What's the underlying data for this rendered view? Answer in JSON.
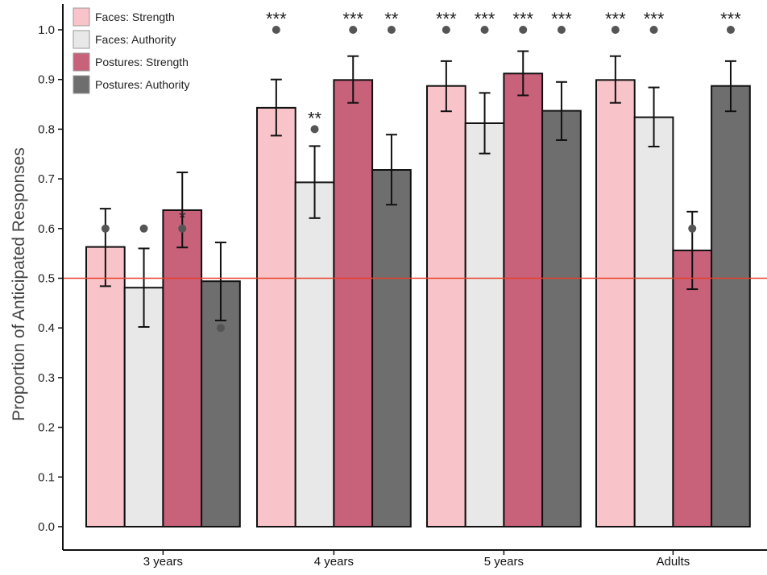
{
  "chart_data": {
    "type": "bar",
    "categories": [
      "3 years",
      "4 years",
      "5 years",
      "Adults"
    ],
    "ylabel": "Proportion of Anticipated Responses",
    "xlabel": "",
    "ylim": [
      0,
      1.0
    ],
    "yticks": [
      "0.0",
      "0.1",
      "0.2",
      "0.3",
      "0.4",
      "0.5",
      "0.6",
      "0.7",
      "0.8",
      "0.9",
      "1.0"
    ],
    "ytick_values": [
      0,
      0.1,
      0.2,
      0.3,
      0.4,
      0.5,
      0.6,
      0.7,
      0.8,
      0.9,
      1.0
    ],
    "reference_line": 0.5,
    "reference_line_color": "#e8402a",
    "legend_position": "top-left",
    "grid": false,
    "series": [
      {
        "name": "Faces: Strength",
        "color": "#f8c4c9",
        "values": [
          0.563,
          0.843,
          0.887,
          0.899
        ],
        "err_low": [
          0.484,
          0.787,
          0.836,
          0.853
        ],
        "err_high": [
          0.64,
          0.9,
          0.937,
          0.947
        ],
        "dots": [
          0.6,
          1.0,
          1.0,
          1.0
        ],
        "sig": [
          "",
          "***",
          "***",
          "***"
        ]
      },
      {
        "name": "Faces: Authority",
        "color": "#e8e8e8",
        "values": [
          0.481,
          0.693,
          0.812,
          0.824
        ],
        "err_low": [
          0.402,
          0.621,
          0.751,
          0.765
        ],
        "err_high": [
          0.56,
          0.766,
          0.873,
          0.884
        ],
        "dots": [
          0.6,
          0.8,
          1.0,
          1.0
        ],
        "sig": [
          "",
          "**",
          "***",
          "***"
        ]
      },
      {
        "name": "Postures: Strength",
        "color": "#c8617a",
        "values": [
          0.637,
          0.899,
          0.912,
          0.556
        ],
        "err_low": [
          0.562,
          0.853,
          0.868,
          0.478
        ],
        "err_high": [
          0.713,
          0.947,
          0.957,
          0.634
        ],
        "dots": [
          0.6,
          1.0,
          1.0,
          0.6
        ],
        "sig": [
          "*",
          "***",
          "***",
          ""
        ]
      },
      {
        "name": "Postures: Authority",
        "color": "#6e6e6e",
        "values": [
          0.494,
          0.718,
          0.837,
          0.887
        ],
        "err_low": [
          0.415,
          0.648,
          0.778,
          0.836
        ],
        "err_high": [
          0.572,
          0.789,
          0.895,
          0.937
        ],
        "dots": [
          0.4,
          1.0,
          1.0,
          1.0
        ],
        "sig": [
          "",
          "**",
          "***",
          "***"
        ]
      }
    ]
  }
}
